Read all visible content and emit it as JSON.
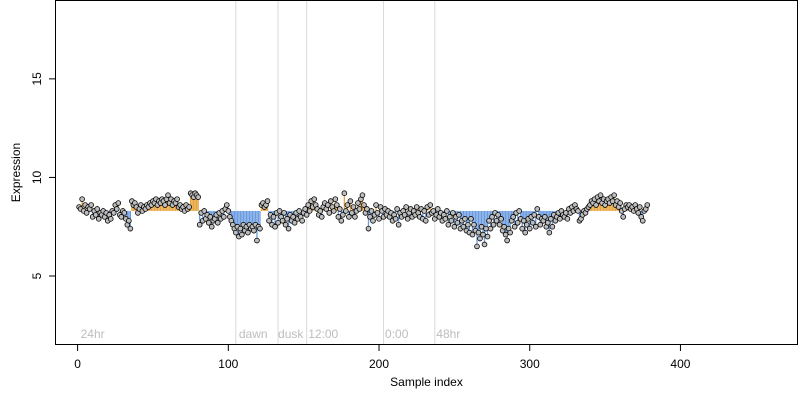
{
  "chart_data": {
    "type": "scatter",
    "title": "",
    "xlabel": "Sample index",
    "ylabel": "Expression",
    "xlim": [
      -15,
      478
    ],
    "ylim": [
      1.5,
      19.0
    ],
    "x_ticks": [
      0,
      100,
      200,
      300,
      400
    ],
    "y_ticks": [
      5,
      10,
      15
    ],
    "grid": false,
    "legend": "none",
    "section_boundaries": [
      105,
      133,
      152,
      203,
      237
    ],
    "section_labels": [
      {
        "x": 2,
        "text": "24hr"
      },
      {
        "x": 107,
        "text": "dawn"
      },
      {
        "x": 133,
        "text": "dusk"
      },
      {
        "x": 153,
        "text": "12:00"
      },
      {
        "x": 204,
        "text": "0:00"
      },
      {
        "x": 238,
        "text": "48hr"
      }
    ],
    "baseline": 8.3,
    "colors": {
      "above": "#e8a23a",
      "below": "#6a9be0",
      "point_fill": "#bdbdbd",
      "point_stroke": "#000000",
      "frame": "#000000",
      "section_line": "#d9d9d9"
    },
    "series": [
      {
        "x_start": 1,
        "values": [
          8.5,
          8.4,
          8.9,
          8.3,
          8.6,
          8.2,
          8.5,
          8.4,
          8.6,
          8.0,
          8.3,
          8.1,
          8.4,
          7.9,
          8.2,
          8.1,
          8.3,
          8.0,
          8.2,
          7.8,
          8.1,
          7.9,
          8.3,
          8.2,
          8.6,
          8.4,
          8.7,
          8.1,
          8.0,
          8.3,
          8.2,
          7.9,
          7.6,
          7.8,
          7.4,
          8.8,
          8.6,
          8.7,
          8.5,
          8.2,
          8.4,
          8.6,
          8.3,
          8.5,
          8.4,
          8.6,
          8.5,
          8.7,
          8.6,
          8.8,
          8.7,
          8.9,
          8.6,
          8.8,
          8.7,
          8.9,
          8.8,
          8.6,
          8.9,
          9.1,
          8.7,
          8.9,
          8.6,
          8.8,
          8.7,
          8.9,
          8.5,
          8.6,
          8.4,
          8.5,
          8.3,
          8.6,
          8.4,
          8.5,
          9.2,
          9.1,
          9.0,
          9.2,
          9.1,
          9.0,
          7.6,
          8.2,
          7.8,
          8.3,
          7.9,
          8.1,
          7.7,
          8.0,
          7.5,
          7.8,
          7.9,
          8.1,
          7.7,
          8.2,
          7.9,
          8.3,
          8.0,
          8.4,
          8.6,
          8.3,
          8.0,
          7.8,
          7.6,
          7.4,
          7.2,
          7.5,
          7.0,
          7.4,
          7.1,
          7.6,
          7.3,
          7.5,
          7.2,
          7.6,
          7.4,
          7.5,
          7.3,
          7.6,
          6.8,
          7.5,
          7.4,
          8.6,
          8.7,
          8.5,
          8.6,
          8.8,
          7.8,
          8.1,
          7.6,
          8.0,
          7.5,
          8.2,
          7.7,
          8.3,
          8.0,
          7.8,
          8.2,
          7.6,
          7.9,
          7.4,
          8.1,
          7.8,
          8.0,
          7.7,
          8.2,
          7.9,
          8.3,
          8.0,
          7.8,
          8.2,
          8.4,
          8.1,
          8.6,
          8.3,
          8.8,
          8.5,
          8.9,
          8.6,
          8.4,
          8.1,
          8.3,
          8.0,
          8.5,
          8.7,
          8.4,
          8.6,
          8.2,
          8.8,
          8.5,
          8.3,
          8.9,
          8.6,
          8.0,
          8.4,
          7.8,
          8.1,
          9.2,
          8.3,
          8.6,
          8.0,
          8.8,
          8.2,
          8.5,
          8.0,
          8.3,
          8.7,
          8.4,
          8.9,
          9.1,
          8.6,
          8.2,
          8.4,
          7.4,
          8.0,
          8.3,
          7.8,
          8.1,
          8.6,
          8.2,
          7.9,
          8.5,
          8.3,
          8.0,
          8.4,
          8.1,
          8.3,
          8.0,
          8.2,
          7.8,
          8.1,
          7.9,
          8.4,
          7.6,
          8.2,
          8.0,
          8.3,
          8.1,
          8.5,
          7.9,
          8.2,
          8.4,
          8.0,
          8.3,
          8.1,
          8.5,
          8.2,
          8.0,
          8.4,
          7.9,
          8.3,
          7.8,
          8.5,
          8.1,
          8.6,
          8.2,
          8.3,
          7.9,
          8.1,
          8.4,
          8.0,
          8.2,
          7.8,
          8.1,
          7.9,
          8.3,
          7.6,
          8.0,
          7.8,
          8.2,
          7.5,
          8.0,
          7.7,
          8.1,
          7.4,
          7.8,
          7.5,
          7.9,
          7.3,
          7.6,
          7.2,
          7.9,
          7.1,
          7.6,
          7.3,
          6.5,
          7.2,
          6.9,
          7.5,
          7.1,
          6.6,
          7.4,
          7.0,
          7.8,
          7.4,
          8.0,
          7.6,
          8.2,
          7.8,
          8.1,
          7.6,
          7.9,
          7.3,
          7.5,
          7.1,
          6.8,
          7.4,
          7.2,
          7.8,
          8.0,
          7.5,
          8.2,
          7.7,
          8.3,
          7.9,
          7.4,
          7.8,
          7.2,
          7.6,
          7.9,
          7.4,
          8.0,
          7.7,
          8.1,
          7.5,
          8.4,
          8.0,
          7.6,
          7.9,
          7.8,
          8.0,
          7.5,
          7.7,
          7.2,
          7.9,
          7.5,
          8.1,
          7.8,
          8.0,
          8.2,
          7.9,
          8.3,
          8.1,
          8.0,
          8.2,
          7.9,
          8.4,
          8.2,
          8.5,
          8.3,
          8.6,
          8.4,
          8.3,
          7.8,
          7.9,
          8.1,
          8.3,
          8.2,
          8.4,
          8.5,
          8.6,
          8.8,
          8.7,
          8.9,
          8.6,
          9.0,
          8.8,
          9.1,
          8.7,
          8.9,
          8.6,
          8.8,
          8.9,
          8.7,
          9.0,
          8.8,
          9.1,
          8.6,
          8.8,
          8.5,
          8.7,
          8.3,
          8.0,
          8.4,
          8.6,
          8.5,
          8.6,
          8.4,
          8.5,
          8.3,
          8.6,
          8.4,
          8.2,
          8.5,
          8.0,
          7.8,
          8.3,
          8.4,
          8.6
        ]
      }
    ]
  }
}
